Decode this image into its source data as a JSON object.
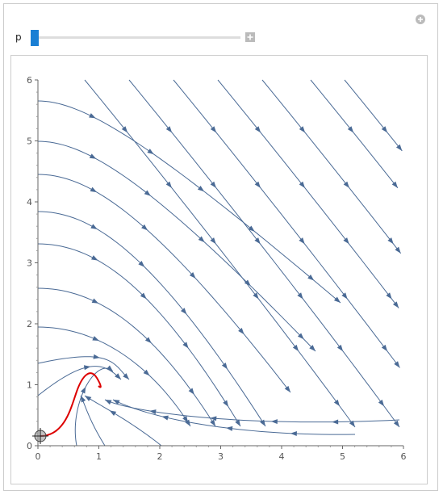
{
  "controls": {
    "label": "p"
  },
  "chart_data": {
    "type": "stream",
    "xlim": [
      0,
      6
    ],
    "ylim": [
      0,
      6
    ],
    "xticks": [
      0,
      1,
      2,
      3,
      4,
      5,
      6
    ],
    "yticks": [
      0,
      1,
      2,
      3,
      4,
      5,
      6
    ]
  }
}
